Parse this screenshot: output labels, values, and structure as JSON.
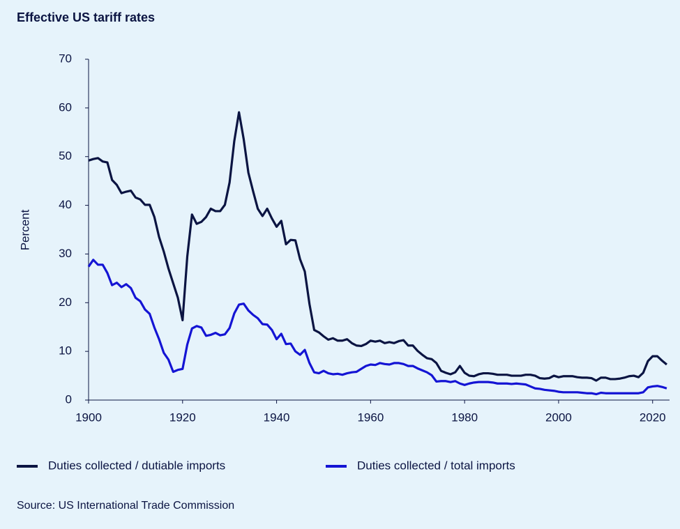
{
  "chart_data": {
    "type": "line",
    "title": "Effective US tariff rates",
    "ylabel": "Percent",
    "source": "Source: US International Trade Commission",
    "x": [
      1900,
      1901,
      1902,
      1903,
      1904,
      1905,
      1906,
      1907,
      1908,
      1909,
      1910,
      1911,
      1912,
      1913,
      1914,
      1915,
      1916,
      1917,
      1918,
      1919,
      1920,
      1921,
      1922,
      1923,
      1924,
      1925,
      1926,
      1927,
      1928,
      1929,
      1930,
      1931,
      1932,
      1933,
      1934,
      1935,
      1936,
      1937,
      1938,
      1939,
      1940,
      1941,
      1942,
      1943,
      1944,
      1945,
      1946,
      1947,
      1948,
      1949,
      1950,
      1951,
      1952,
      1953,
      1954,
      1955,
      1956,
      1957,
      1958,
      1959,
      1960,
      1961,
      1962,
      1963,
      1964,
      1965,
      1966,
      1967,
      1968,
      1969,
      1970,
      1971,
      1972,
      1973,
      1974,
      1975,
      1976,
      1977,
      1978,
      1979,
      1980,
      1981,
      1982,
      1983,
      1984,
      1985,
      1986,
      1987,
      1988,
      1989,
      1990,
      1991,
      1992,
      1993,
      1994,
      1995,
      1996,
      1997,
      1998,
      1999,
      2000,
      2001,
      2002,
      2003,
      2004,
      2005,
      2006,
      2007,
      2008,
      2009,
      2010,
      2011,
      2012,
      2013,
      2014,
      2015,
      2016,
      2017,
      2018,
      2019,
      2020,
      2021,
      2022,
      2023
    ],
    "series": [
      {
        "name": "Duties collected / dutiable imports",
        "color": "#0b1442",
        "values": [
          49.2,
          49.5,
          49.7,
          49,
          48.8,
          45.2,
          44.2,
          42.5,
          42.8,
          43,
          41.6,
          41.2,
          40.1,
          40.1,
          37.6,
          33.5,
          30.5,
          27,
          24,
          21,
          16.4,
          29.5,
          38.1,
          36.2,
          36.6,
          37.6,
          39.3,
          38.8,
          38.8,
          40.1,
          44.7,
          53.2,
          59.1,
          53.6,
          46.7,
          42.9,
          39.3,
          37.8,
          39.3,
          37.3,
          35.6,
          36.8,
          32,
          32.9,
          32.8,
          28.9,
          26.4,
          19.7,
          14.4,
          13.9,
          13.1,
          12.4,
          12.7,
          12.2,
          12.2,
          12.5,
          11.7,
          11.2,
          11.1,
          11.5,
          12.2,
          12,
          12.2,
          11.7,
          11.9,
          11.7,
          12.1,
          12.3,
          11.2,
          11.2,
          10.1,
          9.3,
          8.6,
          8.4,
          7.6,
          6,
          5.6,
          5.3,
          5.7,
          7,
          5.6,
          5,
          4.9,
          5.3,
          5.5,
          5.5,
          5.4,
          5.2,
          5.2,
          5.2,
          5,
          5,
          5,
          5.2,
          5.2,
          5,
          4.5,
          4.4,
          4.5,
          5,
          4.7,
          4.9,
          4.9,
          4.9,
          4.7,
          4.6,
          4.6,
          4.5,
          4,
          4.6,
          4.6,
          4.3,
          4.3,
          4.4,
          4.6,
          4.9,
          5,
          4.7,
          5.6,
          8,
          9,
          9,
          8.1,
          7.3
        ]
      },
      {
        "name": "Duties collected / total imports",
        "color": "#1414d4",
        "values": [
          27.4,
          28.8,
          27.8,
          27.8,
          26.1,
          23.6,
          24.1,
          23.2,
          23.8,
          23,
          21,
          20.3,
          18.6,
          17.7,
          14.9,
          12.5,
          9.7,
          8.3,
          5.8,
          6.2,
          6.4,
          11.4,
          14.7,
          15.2,
          14.9,
          13.2,
          13.4,
          13.8,
          13.3,
          13.5,
          14.8,
          17.8,
          19.6,
          19.8,
          18.4,
          17.5,
          16.8,
          15.6,
          15.5,
          14.4,
          12.5,
          13.6,
          11.5,
          11.6,
          10,
          9.3,
          10.3,
          7.6,
          5.7,
          5.5,
          6,
          5.5,
          5.3,
          5.4,
          5.2,
          5.5,
          5.7,
          5.8,
          6.4,
          7,
          7.3,
          7.2,
          7.6,
          7.4,
          7.3,
          7.6,
          7.6,
          7.4,
          7,
          7,
          6.5,
          6.1,
          5.7,
          5.1,
          3.8,
          3.9,
          3.9,
          3.7,
          3.9,
          3.4,
          3.1,
          3.4,
          3.6,
          3.7,
          3.7,
          3.7,
          3.6,
          3.4,
          3.4,
          3.4,
          3.3,
          3.4,
          3.3,
          3.2,
          2.8,
          2.4,
          2.3,
          2.1,
          2,
          1.9,
          1.7,
          1.6,
          1.6,
          1.6,
          1.6,
          1.5,
          1.4,
          1.4,
          1.2,
          1.5,
          1.4,
          1.4,
          1.4,
          1.4,
          1.4,
          1.4,
          1.4,
          1.4,
          1.6,
          2.6,
          2.8,
          2.9,
          2.7,
          2.4
        ]
      }
    ],
    "xlim": [
      1900,
      2023.6
    ],
    "ylim": [
      0,
      70
    ],
    "xticks": [
      1900,
      1920,
      1940,
      1960,
      1980,
      2000,
      2020
    ],
    "yticks": [
      0,
      10,
      20,
      30,
      40,
      50,
      60,
      70
    ],
    "grid": false
  }
}
